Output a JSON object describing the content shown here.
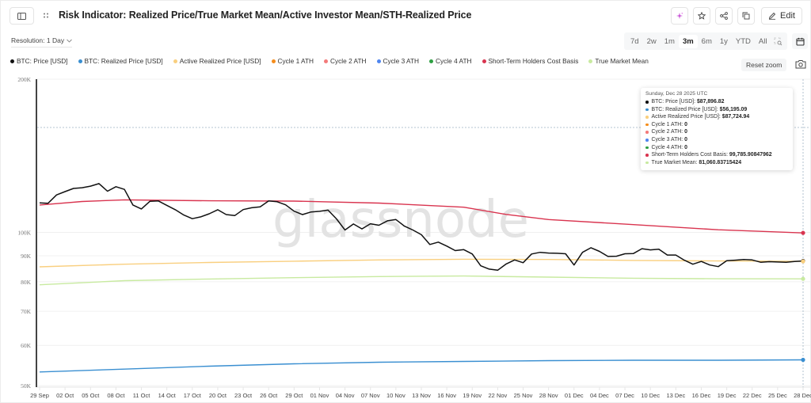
{
  "header": {
    "title": "Risk Indicator: Realized Price/True Market Mean/Active Investor Mean/STH-Realized Price",
    "edit_label": "Edit",
    "icons": [
      "sidebar-toggle-icon",
      "drag-handle-icon",
      "ai-sparkle-icon",
      "star-icon",
      "share-icon",
      "copy-icon",
      "pencil-icon"
    ]
  },
  "controls": {
    "resolution_label": "Resolution: 1 Day",
    "ranges": [
      "7d",
      "2w",
      "1m",
      "3m",
      "6m",
      "1y",
      "YTD",
      "All"
    ],
    "active_range": "3m",
    "reset_zoom_label": "Reset zoom"
  },
  "legend": [
    {
      "label": "BTC: Price [USD]",
      "color": "#111111"
    },
    {
      "label": "BTC: Realized Price [USD]",
      "color": "#3a8fd1"
    },
    {
      "label": "Active Realized Price [USD]",
      "color": "#f9cf7f"
    },
    {
      "label": "Cycle 1 ATH",
      "color": "#f58d1c"
    },
    {
      "label": "Cycle 2 ATH",
      "color": "#f37a7a"
    },
    {
      "label": "Cycle 3 ATH",
      "color": "#4f86f0"
    },
    {
      "label": "Cycle 4 ATH",
      "color": "#2ea043"
    },
    {
      "label": "Short-Term Holders Cost Basis",
      "color": "#d9344f"
    },
    {
      "label": "True Market Mean",
      "color": "#c8eaa0"
    }
  ],
  "watermark": "glassnode",
  "tooltip": {
    "date": "Sunday, Dec 28 2025 UTC",
    "rows": [
      {
        "label": "BTC: Price [USD]:",
        "value": "$87,896.82",
        "color": "#111111"
      },
      {
        "label": "BTC: Realized Price [USD]:",
        "value": "$56,195.09",
        "color": "#3a8fd1"
      },
      {
        "label": "Active Realized Price [USD]:",
        "value": "$87,724.94",
        "color": "#f9cf7f"
      },
      {
        "label": "Cycle 1 ATH:",
        "value": "0",
        "color": "#f58d1c"
      },
      {
        "label": "Cycle 2 ATH:",
        "value": "0",
        "color": "#f37a7a"
      },
      {
        "label": "Cycle 3 ATH:",
        "value": "0",
        "color": "#4f86f0"
      },
      {
        "label": "Cycle 4 ATH:",
        "value": "0",
        "color": "#2ea043"
      },
      {
        "label": "Short-Term Holders Cost Basis:",
        "value": "99,785.90847962",
        "color": "#d9344f"
      },
      {
        "label": "True Market Mean:",
        "value": "81,060.83715424",
        "color": "#c8eaa0"
      }
    ]
  },
  "chart_data": {
    "type": "line",
    "title": "Risk Indicator: Realized Price/True Market Mean/Active Investor Mean/STH-Realized Price",
    "xlabel": "",
    "ylabel": "",
    "yscale": "log",
    "ylim": [
      50000,
      200000
    ],
    "y_ticks": [
      "50K",
      "60K",
      "70K",
      "80K",
      "90K",
      "100K",
      "200K"
    ],
    "y_tick_values": [
      50000,
      60000,
      70000,
      80000,
      90000,
      100000,
      200000
    ],
    "x_tick_labels": [
      "29 Sep",
      "02 Oct",
      "05 Oct",
      "08 Oct",
      "11 Oct",
      "14 Oct",
      "17 Oct",
      "20 Oct",
      "23 Oct",
      "26 Oct",
      "29 Oct",
      "01 Nov",
      "04 Nov",
      "07 Nov",
      "10 Nov",
      "13 Nov",
      "16 Nov",
      "19 Nov",
      "22 Nov",
      "25 Nov",
      "28 Nov",
      "01 Dec",
      "04 Dec",
      "07 Dec",
      "10 Dec",
      "13 Dec",
      "16 Dec",
      "19 Dec",
      "22 Dec",
      "25 Dec",
      "28 Dec"
    ],
    "x_range": [
      "2025-09-29",
      "2025-12-28"
    ],
    "grid": true,
    "legend_position": "top",
    "series": [
      {
        "name": "BTC: Price [USD]",
        "color": "#111111",
        "x_days": [
          0,
          1,
          2,
          3,
          4,
          5,
          6,
          7,
          8,
          9,
          10,
          11,
          12,
          13,
          14,
          15,
          16,
          17,
          18,
          19,
          20,
          21,
          22,
          23,
          24,
          25,
          26,
          27,
          28,
          29,
          30,
          31,
          32,
          33,
          34,
          35,
          36,
          37,
          38,
          39,
          40,
          41,
          42,
          43,
          44,
          45,
          46,
          47,
          48,
          49,
          50,
          51,
          52,
          53,
          54,
          55,
          56,
          57,
          58,
          59,
          60,
          61,
          62,
          63,
          64,
          65,
          66,
          67,
          68,
          69,
          70,
          71,
          72,
          73,
          74,
          75,
          76,
          77,
          78,
          79,
          80,
          81,
          82,
          83,
          84,
          85,
          86,
          87,
          88,
          89,
          90
        ],
        "values": [
          114300,
          114100,
          118500,
          120300,
          122000,
          122400,
          123300,
          124700,
          120500,
          123000,
          121500,
          113200,
          111200,
          115100,
          115300,
          113000,
          110800,
          108200,
          106400,
          107300,
          108800,
          110800,
          108400,
          107900,
          110900,
          111800,
          112300,
          115300,
          114900,
          113300,
          110100,
          108400,
          109700,
          110000,
          110600,
          106300,
          101100,
          103900,
          101600,
          104000,
          103300,
          105400,
          106000,
          102900,
          101100,
          99000,
          94700,
          95700,
          94000,
          92100,
          92500,
          90700,
          86000,
          84700,
          84300,
          86700,
          88300,
          87200,
          90700,
          91400,
          91100,
          91000,
          90800,
          86300,
          91400,
          93300,
          91800,
          89700,
          89800,
          90800,
          90900,
          92900,
          92400,
          92700,
          90300,
          90300,
          88200,
          86600,
          87700,
          86300,
          85700,
          88000,
          88200,
          88500,
          88300,
          87400,
          87600,
          87500,
          87400,
          87700,
          87900
        ]
      },
      {
        "name": "BTC: Realized Price [USD]",
        "color": "#3a8fd1",
        "x_days": [
          0,
          10,
          20,
          30,
          40,
          50,
          60,
          70,
          80,
          90
        ],
        "values": [
          53200,
          53900,
          54600,
          55200,
          55600,
          55800,
          56000,
          56100,
          56100,
          56195
        ]
      },
      {
        "name": "Active Realized Price [USD]",
        "color": "#f9cf7f",
        "x_days": [
          0,
          10,
          20,
          30,
          40,
          50,
          60,
          70,
          80,
          90
        ],
        "values": [
          85600,
          86600,
          87300,
          87800,
          88300,
          88600,
          88500,
          88100,
          87900,
          87725
        ]
      },
      {
        "name": "Cycle 1 ATH",
        "color": "#f58d1c",
        "values": "0 (not visible on log scale)"
      },
      {
        "name": "Cycle 2 ATH",
        "color": "#f37a7a",
        "values": "0 (not visible on log scale)"
      },
      {
        "name": "Cycle 3 ATH",
        "color": "#4f86f0",
        "values": "0 (not visible on log scale)"
      },
      {
        "name": "Cycle 4 ATH",
        "color": "#2ea043",
        "values": "0 (not visible on log scale)"
      },
      {
        "name": "Short-Term Holders Cost Basis",
        "color": "#d9344f",
        "x_days": [
          0,
          5,
          10,
          20,
          30,
          40,
          50,
          55,
          60,
          70,
          80,
          90
        ],
        "values": [
          113200,
          115000,
          115900,
          115400,
          115200,
          114200,
          112100,
          108500,
          106000,
          103600,
          101200,
          99786
        ]
      },
      {
        "name": "True Market Mean",
        "color": "#c8eaa0",
        "x_days": [
          0,
          10,
          20,
          30,
          40,
          50,
          60,
          70,
          80,
          90
        ],
        "values": [
          78900,
          80400,
          81000,
          81500,
          81900,
          82100,
          81700,
          81300,
          81100,
          81061
        ]
      }
    ]
  }
}
